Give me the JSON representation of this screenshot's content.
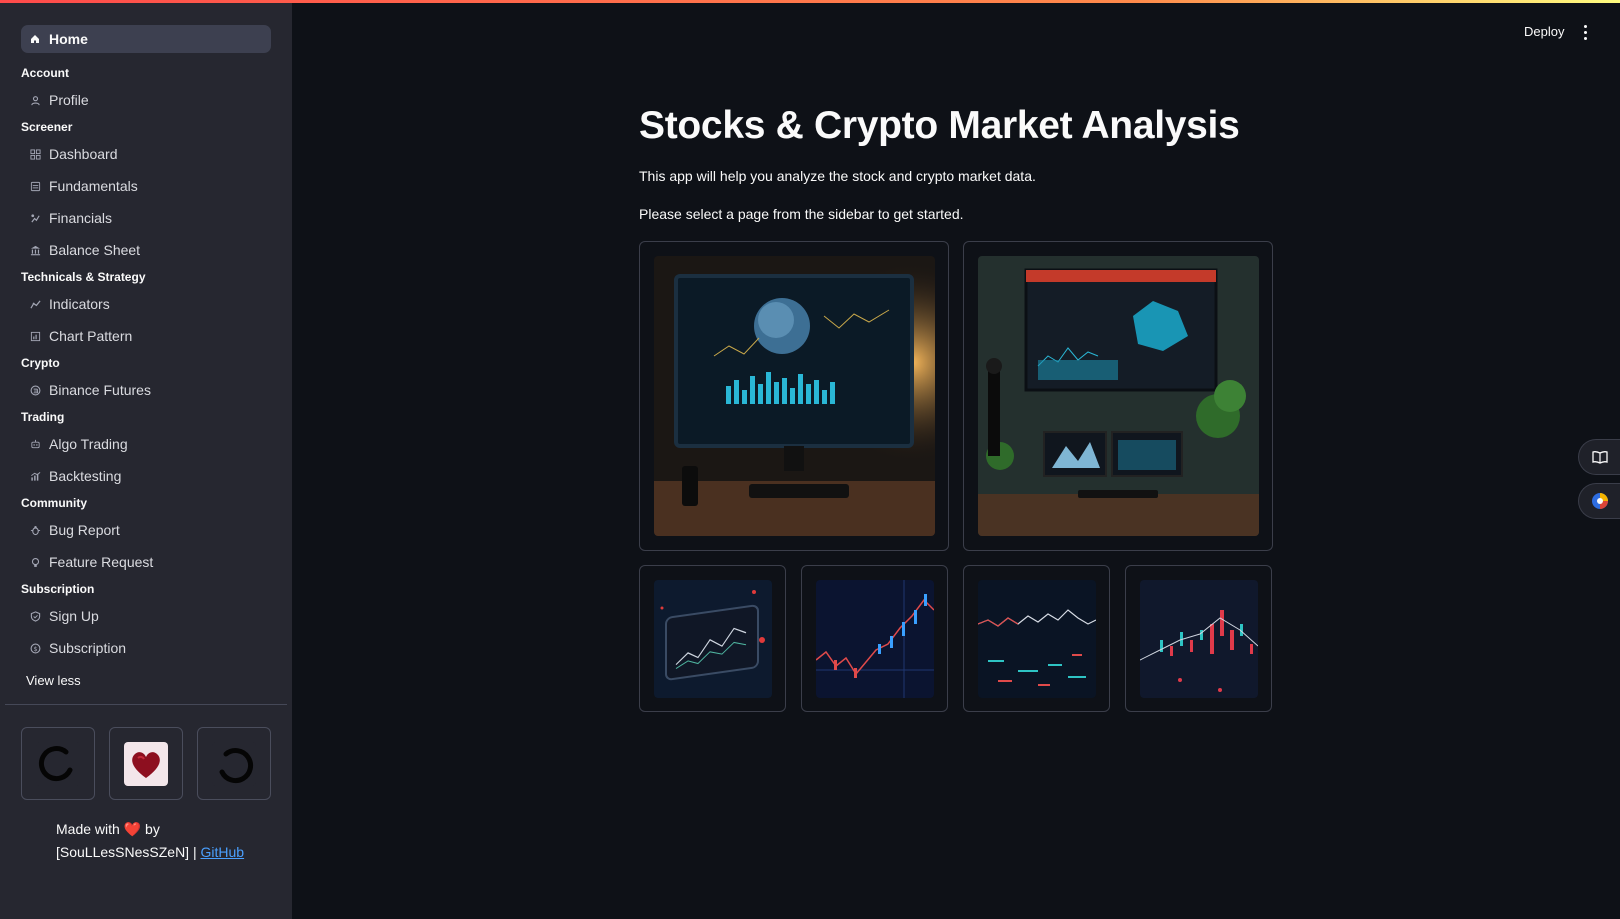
{
  "sidebar": {
    "home": "Home",
    "sections": [
      {
        "title": "Account",
        "items": [
          {
            "label": "Profile",
            "icon": "person-icon"
          }
        ]
      },
      {
        "title": "Screener",
        "items": [
          {
            "label": "Dashboard",
            "icon": "dashboard-icon"
          },
          {
            "label": "Fundamentals",
            "icon": "ledger-icon"
          },
          {
            "label": "Financials",
            "icon": "finance-icon"
          },
          {
            "label": "Balance Sheet",
            "icon": "bank-icon"
          }
        ]
      },
      {
        "title": "Technicals & Strategy",
        "items": [
          {
            "label": "Indicators",
            "icon": "indicator-icon"
          },
          {
            "label": "Chart Pattern",
            "icon": "chart-icon"
          }
        ]
      },
      {
        "title": "Crypto",
        "items": [
          {
            "label": "Binance Futures",
            "icon": "coin-icon"
          }
        ]
      },
      {
        "title": "Trading",
        "items": [
          {
            "label": "Algo Trading",
            "icon": "robot-icon"
          },
          {
            "label": "Backtesting",
            "icon": "backtest-icon"
          }
        ]
      },
      {
        "title": "Community",
        "items": [
          {
            "label": "Bug Report",
            "icon": "bug-icon"
          },
          {
            "label": "Feature Request",
            "icon": "lightbulb-icon"
          }
        ]
      },
      {
        "title": "Subscription",
        "items": [
          {
            "label": "Sign Up",
            "icon": "shield-icon"
          },
          {
            "label": "Subscription",
            "icon": "dollar-icon"
          }
        ]
      }
    ],
    "view_less": "View less",
    "footer": {
      "made_with": "Made with",
      "heart": "❤️",
      "by": "by",
      "author": "[SouLLesSNesSZeN] |",
      "link": "GitHub"
    }
  },
  "header": {
    "deploy": "Deploy"
  },
  "main": {
    "title": "Stocks & Crypto Market Analysis",
    "intro": "This app will help you analyze the stock and crypto market data.",
    "instruction": "Please select a page from the sidebar to get started."
  },
  "colors": {
    "background": "#0e1117",
    "sidebar": "#262730",
    "accent": "#ff4b4b",
    "link": "#4aa0ff"
  }
}
